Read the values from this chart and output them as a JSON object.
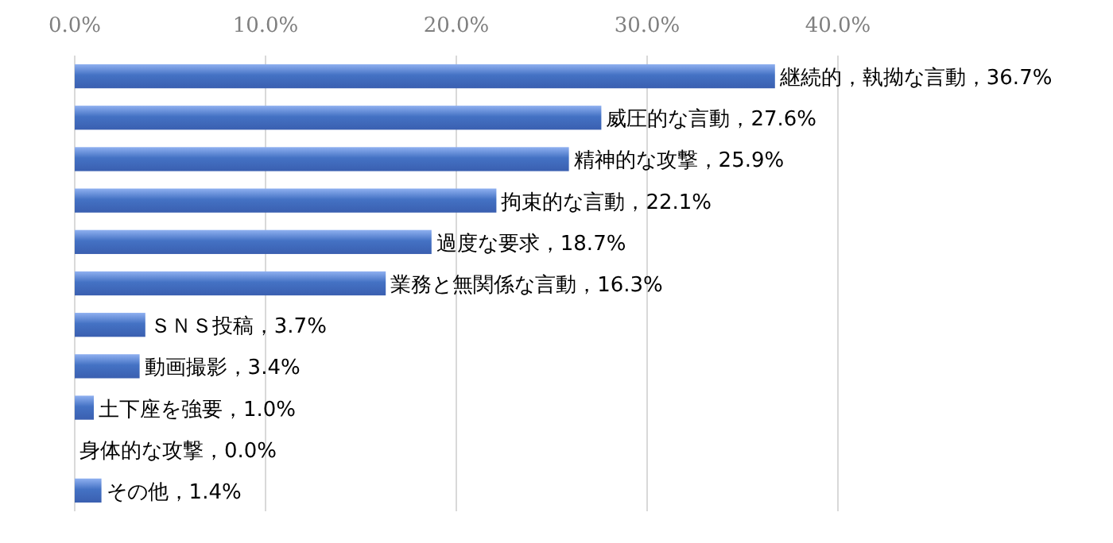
{
  "chart_data": {
    "type": "bar",
    "orientation": "horizontal",
    "categories": [
      "継続的，執拗な言動",
      "威圧的な言動",
      "精神的な攻撃",
      "拘束的な言動",
      "過度な要求",
      "業務と無関係な言動",
      "ＳＮＳ投稿",
      "動画撮影",
      "土下座を強要",
      "身体的な攻撃",
      "その他"
    ],
    "values": [
      36.7,
      27.6,
      25.9,
      22.1,
      18.7,
      16.3,
      3.7,
      3.4,
      1.0,
      0.0,
      1.4
    ],
    "value_labels": [
      "，36.7%",
      "，27.6%",
      "，25.9%",
      "，22.1%",
      "，18.7%",
      "，16.3%",
      "，3.7%",
      "，3.4%",
      "，1.0%",
      "，0.0%",
      "，1.4%"
    ],
    "color": "#4472c4",
    "xlim": [
      0,
      40
    ],
    "xticks": [
      {
        "value": 0,
        "label": "0.0%"
      },
      {
        "value": 10,
        "label": "10.0%"
      },
      {
        "value": 20,
        "label": "20.0%"
      },
      {
        "value": 30,
        "label": "30.0%"
      },
      {
        "value": 40,
        "label": "40.0%"
      }
    ],
    "grid": "x",
    "tick_labels": "x",
    "legend": false
  }
}
